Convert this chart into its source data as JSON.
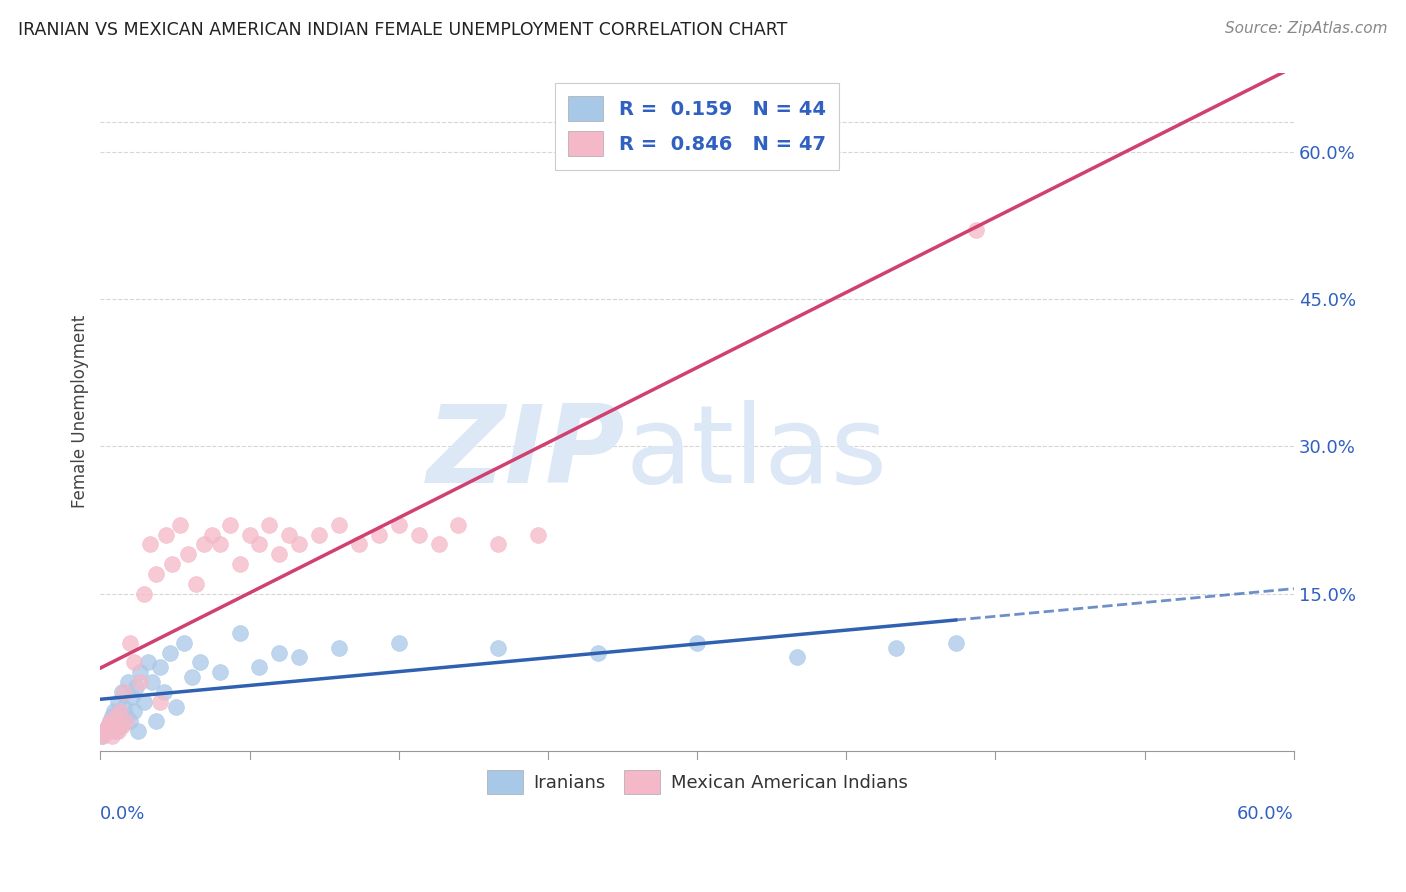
{
  "title": "IRANIAN VS MEXICAN AMERICAN INDIAN FEMALE UNEMPLOYMENT CORRELATION CHART",
  "source": "Source: ZipAtlas.com",
  "ylabel": "Female Unemployment",
  "ytick_vals": [
    0.15,
    0.3,
    0.45,
    0.6
  ],
  "ytick_labels": [
    "15.0%",
    "30.0%",
    "45.0%",
    "60.0%"
  ],
  "xlim": [
    0.0,
    0.6
  ],
  "ylim": [
    -0.01,
    0.68
  ],
  "legend_iranian": "Iranians",
  "legend_mexican": "Mexican American Indians",
  "r_iranian": "0.159",
  "n_iranian": "44",
  "r_mexican": "0.846",
  "n_mexican": "47",
  "color_iranian": "#a8c8e8",
  "color_mexican": "#f4b8c8",
  "color_iranian_line": "#3060b0",
  "color_mexican_line": "#d04070",
  "color_axis_labels": "#3060c0",
  "color_title": "#222222",
  "watermark_color": "#dce8f5",
  "background_color": "#ffffff",
  "grid_color": "#cccccc",
  "iranian_x": [
    0.001,
    0.002,
    0.003,
    0.004,
    0.005,
    0.006,
    0.007,
    0.008,
    0.009,
    0.01,
    0.011,
    0.012,
    0.013,
    0.014,
    0.015,
    0.016,
    0.017,
    0.018,
    0.019,
    0.02,
    0.022,
    0.024,
    0.026,
    0.028,
    0.03,
    0.032,
    0.035,
    0.038,
    0.042,
    0.046,
    0.05,
    0.06,
    0.07,
    0.08,
    0.09,
    0.1,
    0.12,
    0.15,
    0.2,
    0.25,
    0.3,
    0.35,
    0.4,
    0.43
  ],
  "iranian_y": [
    0.005,
    0.008,
    0.01,
    0.015,
    0.02,
    0.025,
    0.03,
    0.01,
    0.04,
    0.015,
    0.05,
    0.035,
    0.025,
    0.06,
    0.02,
    0.045,
    0.03,
    0.055,
    0.01,
    0.07,
    0.04,
    0.08,
    0.06,
    0.02,
    0.075,
    0.05,
    0.09,
    0.035,
    0.1,
    0.065,
    0.08,
    0.07,
    0.11,
    0.075,
    0.09,
    0.085,
    0.095,
    0.1,
    0.095,
    0.09,
    0.1,
    0.085,
    0.095,
    0.1
  ],
  "mexican_x": [
    0.001,
    0.002,
    0.003,
    0.004,
    0.005,
    0.006,
    0.007,
    0.008,
    0.009,
    0.01,
    0.011,
    0.012,
    0.013,
    0.015,
    0.017,
    0.02,
    0.022,
    0.025,
    0.028,
    0.03,
    0.033,
    0.036,
    0.04,
    0.044,
    0.048,
    0.052,
    0.056,
    0.06,
    0.065,
    0.07,
    0.075,
    0.08,
    0.085,
    0.09,
    0.095,
    0.1,
    0.11,
    0.12,
    0.13,
    0.14,
    0.15,
    0.16,
    0.17,
    0.18,
    0.2,
    0.22,
    0.44
  ],
  "mexican_y": [
    0.005,
    0.01,
    0.008,
    0.015,
    0.02,
    0.005,
    0.015,
    0.025,
    0.01,
    0.03,
    0.015,
    0.05,
    0.02,
    0.1,
    0.08,
    0.06,
    0.15,
    0.2,
    0.17,
    0.04,
    0.21,
    0.18,
    0.22,
    0.19,
    0.16,
    0.2,
    0.21,
    0.2,
    0.22,
    0.18,
    0.21,
    0.2,
    0.22,
    0.19,
    0.21,
    0.2,
    0.21,
    0.22,
    0.2,
    0.21,
    0.22,
    0.21,
    0.2,
    0.22,
    0.2,
    0.21,
    0.52
  ]
}
